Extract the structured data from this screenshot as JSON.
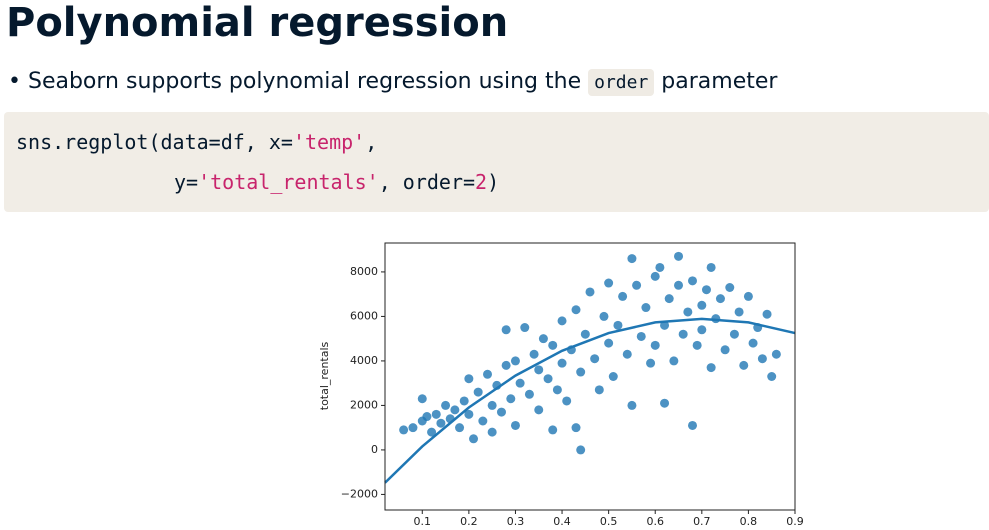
{
  "header": {
    "title": "Polynomial regression"
  },
  "bullets": [
    [
      "Seaborn supports polynomial regression using the ",
      "order",
      " parameter"
    ]
  ],
  "code": {
    "lines": [
      [
        "sns.regplot(data=df, x=",
        "'temp'",
        ","
      ],
      [
        "y=",
        "'total_rentals'",
        ", order=",
        "2",
        ")"
      ]
    ]
  },
  "chart_data": {
    "type": "scatter",
    "y_label": "total_rentals",
    "color": "#1f77b4",
    "line_color": "#1f77b4",
    "xlim": [
      0.02,
      0.9
    ],
    "ylim": [
      -2700,
      9300
    ],
    "xticks": [
      0.1,
      0.2,
      0.3,
      0.4,
      0.5,
      0.6,
      0.7,
      0.8,
      0.9
    ],
    "yticks": [
      {
        "value": -2000,
        "label": "−2000"
      },
      0,
      2000,
      4000,
      6000,
      8000
    ],
    "x": [
      0.06,
      0.08,
      0.1,
      0.1,
      0.11,
      0.12,
      0.13,
      0.14,
      0.15,
      0.16,
      0.17,
      0.18,
      0.19,
      0.2,
      0.2,
      0.21,
      0.22,
      0.23,
      0.24,
      0.25,
      0.25,
      0.26,
      0.27,
      0.28,
      0.28,
      0.29,
      0.3,
      0.3,
      0.31,
      0.32,
      0.33,
      0.34,
      0.35,
      0.35,
      0.36,
      0.37,
      0.38,
      0.38,
      0.39,
      0.4,
      0.4,
      0.41,
      0.42,
      0.43,
      0.43,
      0.44,
      0.44,
      0.45,
      0.46,
      0.47,
      0.48,
      0.49,
      0.5,
      0.5,
      0.51,
      0.52,
      0.53,
      0.54,
      0.55,
      0.55,
      0.56,
      0.57,
      0.58,
      0.59,
      0.6,
      0.6,
      0.61,
      0.62,
      0.62,
      0.63,
      0.64,
      0.65,
      0.65,
      0.66,
      0.67,
      0.68,
      0.68,
      0.69,
      0.7,
      0.7,
      0.71,
      0.72,
      0.72,
      0.73,
      0.74,
      0.75,
      0.76,
      0.77,
      0.78,
      0.79,
      0.8,
      0.81,
      0.82,
      0.83,
      0.84,
      0.85,
      0.86
    ],
    "values": [
      900,
      1000,
      1300,
      2300,
      1500,
      800,
      1600,
      1200,
      2000,
      1400,
      1800,
      1000,
      2200,
      1600,
      3200,
      500,
      2600,
      1300,
      3400,
      2000,
      800,
      2900,
      1700,
      3800,
      5400,
      2300,
      4000,
      1100,
      3000,
      5500,
      2500,
      4300,
      1800,
      3600,
      5000,
      3200,
      900,
      4700,
      2700,
      5800,
      3900,
      2200,
      4500,
      6300,
      1000,
      0,
      3500,
      5200,
      7100,
      4100,
      2700,
      6000,
      4800,
      7500,
      3300,
      5600,
      6900,
      4300,
      8600,
      2000,
      7400,
      5100,
      6400,
      3900,
      7800,
      4700,
      8200,
      5600,
      2100,
      6800,
      4000,
      7400,
      8700,
      5200,
      6200,
      1100,
      7600,
      4700,
      6500,
      5400,
      7200,
      8200,
      3700,
      5900,
      6800,
      4500,
      7300,
      5200,
      6200,
      3800,
      6900,
      4800,
      5500,
      4100,
      6100,
      3300,
      4300
    ],
    "fit": {
      "x": [
        0.02,
        0.1,
        0.2,
        0.3,
        0.4,
        0.5,
        0.6,
        0.7,
        0.8,
        0.9
      ],
      "values": [
        -1476,
        155,
        1907,
        3341,
        4456,
        5253,
        5731,
        5890,
        5731,
        5253
      ]
    }
  }
}
